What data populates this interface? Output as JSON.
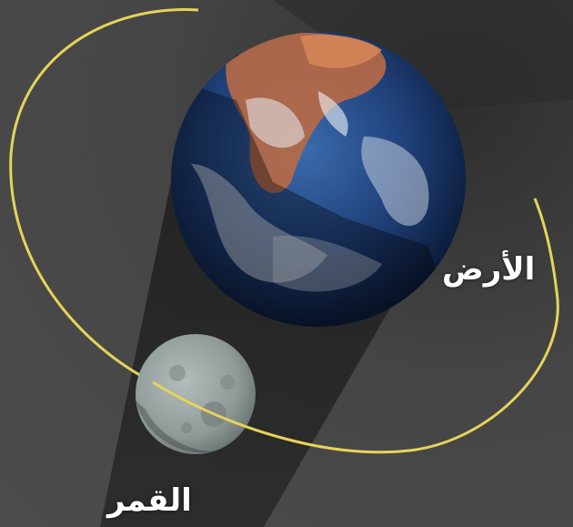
{
  "labels": {
    "earth": "الأرض",
    "moon": "القمر"
  },
  "colors": {
    "background": "#4a4a4a",
    "shadow": "#1c1c1c",
    "orbit": "#e6d35a",
    "ocean": "#1f3f78",
    "land": "#b96a45",
    "cloud": "#e9eef5",
    "moon": "#8f9a98"
  },
  "icons": {
    "earth": "earth-globe",
    "moon": "moon-sphere",
    "orbit": "moon-orbit-ellipse",
    "shadow": "earth-shadow-cone"
  }
}
